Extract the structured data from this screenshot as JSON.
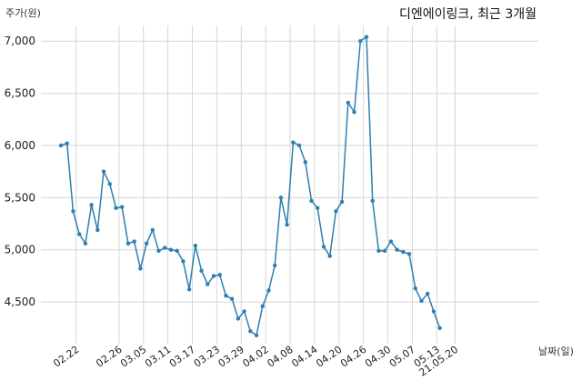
{
  "chart_data": {
    "type": "line",
    "title": "디엔에이링크, 최근 3개월",
    "ylabel": "주가(원)",
    "xlabel": "날짜(일)",
    "ylim": [
      4100,
      7150
    ],
    "yticks": [
      4500,
      5000,
      5500,
      6000,
      6500,
      7000
    ],
    "ytick_labels": [
      "4,500",
      "5,000",
      "5,500",
      "6,000",
      "6,500",
      "7,000"
    ],
    "xtick_labels": [
      "02.22",
      "02.26",
      "03.05",
      "03.11",
      "03.17",
      "03.23",
      "03.29",
      "04.02",
      "04.08",
      "04.14",
      "04.20",
      "04.26",
      "04.30",
      "05.07",
      "05.13",
      "21.05.20"
    ],
    "xtick_positions": [
      2.5,
      9.5,
      13.5,
      17.5,
      21.5,
      25.5,
      29.5,
      33.5,
      37.5,
      41.5,
      45.5,
      49.5,
      53.5,
      57.5,
      61.5,
      64.5
    ],
    "grid": true,
    "color": "#2e7fb0",
    "series": [
      {
        "values": [
          6000,
          6020,
          5370,
          5150,
          5060,
          5430,
          5190,
          5750,
          5630,
          5400,
          5410,
          5060,
          5080,
          4820,
          5060,
          5190,
          4990,
          5020,
          5000,
          4990,
          4890,
          4620,
          5040,
          4800,
          4670,
          4750,
          4760,
          4560,
          4530,
          4340,
          4410,
          4220,
          4180,
          4460,
          4610,
          4850,
          5500,
          5240,
          6030,
          6000,
          5840,
          5470,
          5400,
          5030,
          4940,
          5370,
          5460,
          6410,
          6320,
          7000,
          7040,
          5470,
          4990,
          4990,
          5080,
          5000,
          4980,
          4960,
          4630,
          4510,
          4580,
          4410,
          4250
        ]
      }
    ]
  }
}
